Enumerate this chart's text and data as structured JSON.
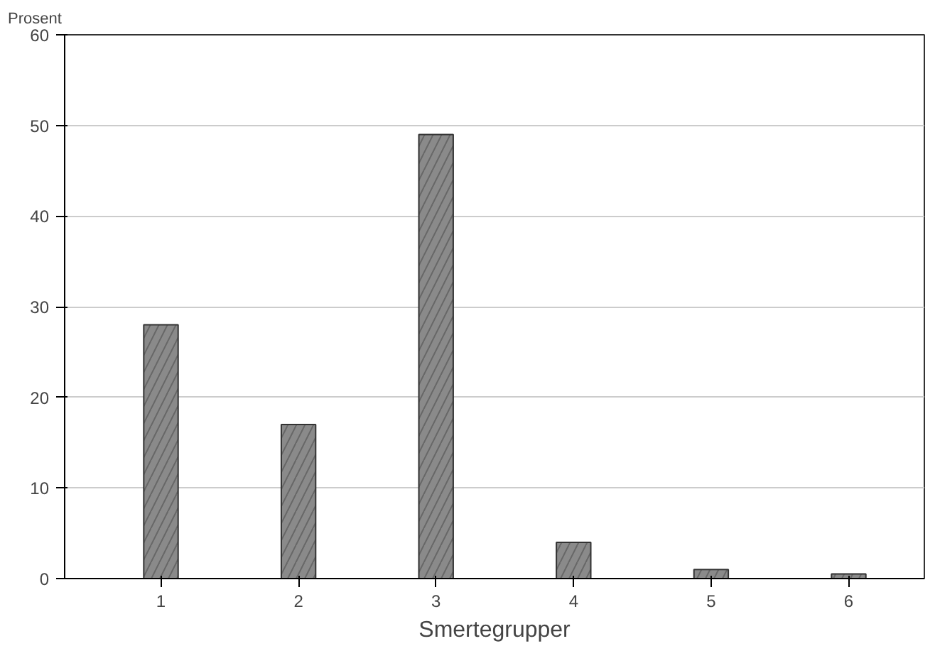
{
  "chart_data": {
    "type": "bar",
    "ylabel": "Prosent",
    "xlabel": "Smertegrupper",
    "categories": [
      "1",
      "2",
      "3",
      "4",
      "5",
      "6"
    ],
    "values": [
      28,
      17,
      49,
      4,
      1,
      0.5
    ],
    "color": "#8a8a8a",
    "ylim": [
      0,
      60
    ],
    "yticks": [
      0,
      10,
      20,
      30,
      40,
      50,
      60
    ],
    "grid": "y"
  }
}
